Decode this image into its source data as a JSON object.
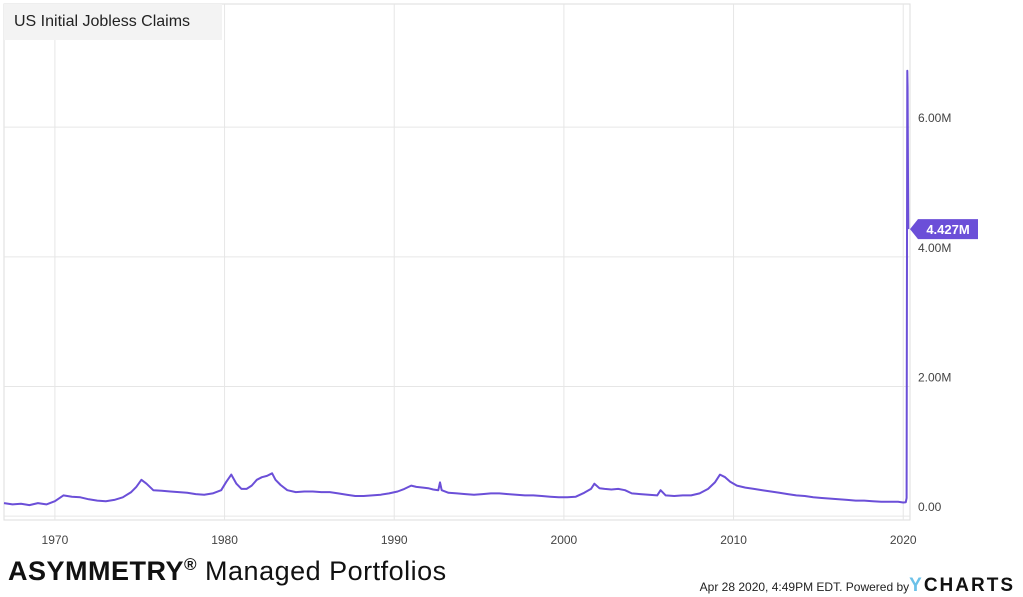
{
  "chart_data": {
    "type": "line",
    "title": "US Initial Jobless Claims",
    "xlabel": "",
    "ylabel": "",
    "xlim": [
      1967,
      2020.4
    ],
    "ylim": [
      -60000,
      7900000
    ],
    "x_ticks": [
      1970,
      1980,
      1990,
      2000,
      2010,
      2020
    ],
    "x_tick_labels": [
      "1970",
      "1980",
      "1990",
      "2000",
      "2010",
      "2020"
    ],
    "y_ticks": [
      0,
      2000000,
      4000000,
      6000000
    ],
    "y_tick_labels": [
      "0.00",
      "2.00M",
      "4.00M",
      "6.00M"
    ],
    "grid": true,
    "series": [
      {
        "color": "#6b4fd8",
        "x": [
          1967.0,
          1967.5,
          1968.0,
          1968.5,
          1969.0,
          1969.5,
          1970.0,
          1970.5,
          1971.0,
          1971.5,
          1972.0,
          1972.5,
          1973.0,
          1973.5,
          1974.0,
          1974.5,
          1974.8,
          1975.1,
          1975.4,
          1975.8,
          1976.3,
          1976.8,
          1977.3,
          1977.8,
          1978.3,
          1978.8,
          1979.3,
          1979.8,
          1980.1,
          1980.4,
          1980.7,
          1981.0,
          1981.3,
          1981.6,
          1981.9,
          1982.2,
          1982.5,
          1982.8,
          1983.0,
          1983.3,
          1983.7,
          1984.2,
          1984.7,
          1985.2,
          1985.7,
          1986.2,
          1986.7,
          1987.2,
          1987.7,
          1988.2,
          1988.7,
          1989.2,
          1989.7,
          1990.2,
          1990.6,
          1991.0,
          1991.3,
          1991.7,
          1992.0,
          1992.3,
          1992.6,
          1992.7,
          1992.8,
          1993.2,
          1993.7,
          1994.2,
          1994.7,
          1995.2,
          1995.7,
          1996.2,
          1996.7,
          1997.2,
          1997.7,
          1998.2,
          1998.7,
          1999.2,
          1999.7,
          2000.2,
          2000.7,
          2001.2,
          2001.6,
          2001.8,
          2002.1,
          2002.4,
          2002.8,
          2003.2,
          2003.6,
          2004.0,
          2004.5,
          2005.0,
          2005.5,
          2005.7,
          2006.0,
          2006.5,
          2007.0,
          2007.5,
          2008.0,
          2008.5,
          2008.9,
          2009.2,
          2009.5,
          2009.8,
          2010.2,
          2010.7,
          2011.2,
          2011.7,
          2012.2,
          2012.7,
          2013.2,
          2013.7,
          2014.2,
          2014.7,
          2015.2,
          2015.7,
          2016.2,
          2016.7,
          2017.2,
          2017.7,
          2018.2,
          2018.7,
          2019.2,
          2019.7,
          2020.0,
          2020.15,
          2020.2,
          2020.22,
          2020.24,
          2020.26,
          2020.28,
          2020.3
        ],
        "y": [
          200000,
          180000,
          190000,
          170000,
          200000,
          180000,
          230000,
          320000,
          300000,
          290000,
          260000,
          240000,
          230000,
          250000,
          290000,
          370000,
          450000,
          560000,
          500000,
          400000,
          390000,
          380000,
          370000,
          360000,
          340000,
          330000,
          350000,
          400000,
          530000,
          640000,
          500000,
          420000,
          420000,
          470000,
          560000,
          600000,
          620000,
          660000,
          560000,
          480000,
          400000,
          370000,
          380000,
          380000,
          370000,
          370000,
          350000,
          330000,
          310000,
          310000,
          320000,
          330000,
          350000,
          380000,
          420000,
          470000,
          450000,
          440000,
          430000,
          410000,
          400000,
          520000,
          400000,
          360000,
          350000,
          340000,
          330000,
          340000,
          350000,
          350000,
          340000,
          330000,
          320000,
          320000,
          310000,
          300000,
          290000,
          290000,
          300000,
          360000,
          420000,
          500000,
          430000,
          420000,
          410000,
          420000,
          400000,
          350000,
          340000,
          330000,
          320000,
          400000,
          320000,
          310000,
          320000,
          320000,
          350000,
          420000,
          520000,
          640000,
          600000,
          530000,
          470000,
          440000,
          420000,
          400000,
          380000,
          360000,
          340000,
          320000,
          310000,
          290000,
          280000,
          270000,
          260000,
          250000,
          240000,
          240000,
          230000,
          220000,
          220000,
          220000,
          210000,
          215000,
          280000,
          3300000,
          6870000,
          6620000,
          5240000,
          4427000
        ]
      }
    ],
    "last_value_label": "4.427M"
  },
  "branding": {
    "left_strong": "ASYMMETRY",
    "left_registered": "®",
    "left_rest": " Managed Portfolios",
    "footer_timestamp": "Apr 28 2020, 4:49PM EDT.",
    "footer_powered": "Powered by",
    "footer_logo_y": "Y",
    "footer_logo_rest": "CHARTS"
  }
}
